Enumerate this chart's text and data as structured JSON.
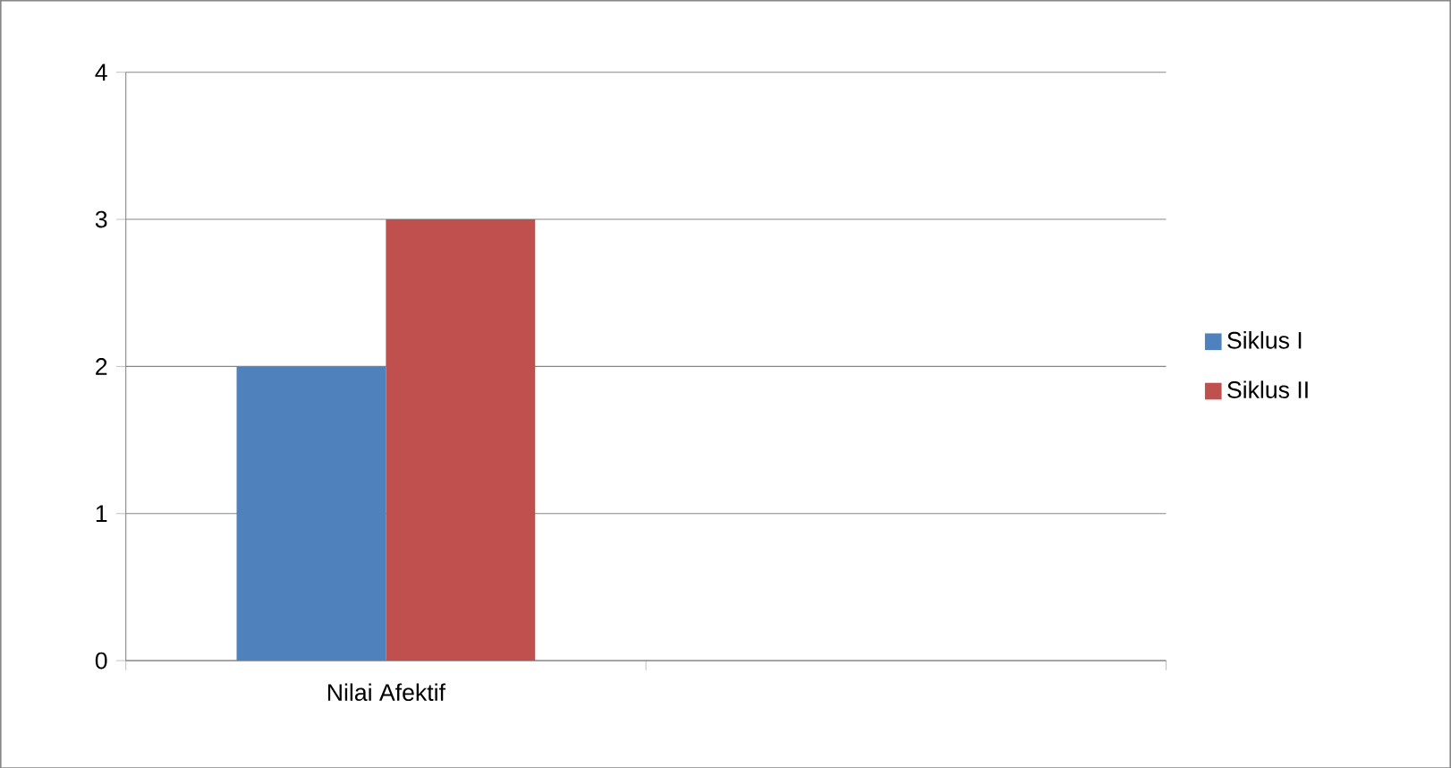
{
  "chart_data": {
    "type": "bar",
    "categories": [
      "Nilai Afektif",
      null
    ],
    "series": [
      {
        "name": "Siklus I",
        "color": "#4f81bd",
        "values": [
          2,
          null
        ]
      },
      {
        "name": "Siklus II",
        "color": "#c0504d",
        "values": [
          3,
          null
        ]
      }
    ],
    "ylim": [
      0,
      4
    ],
    "yticks": [
      0,
      1,
      2,
      3,
      4
    ],
    "grid": "y",
    "legend": "right"
  }
}
